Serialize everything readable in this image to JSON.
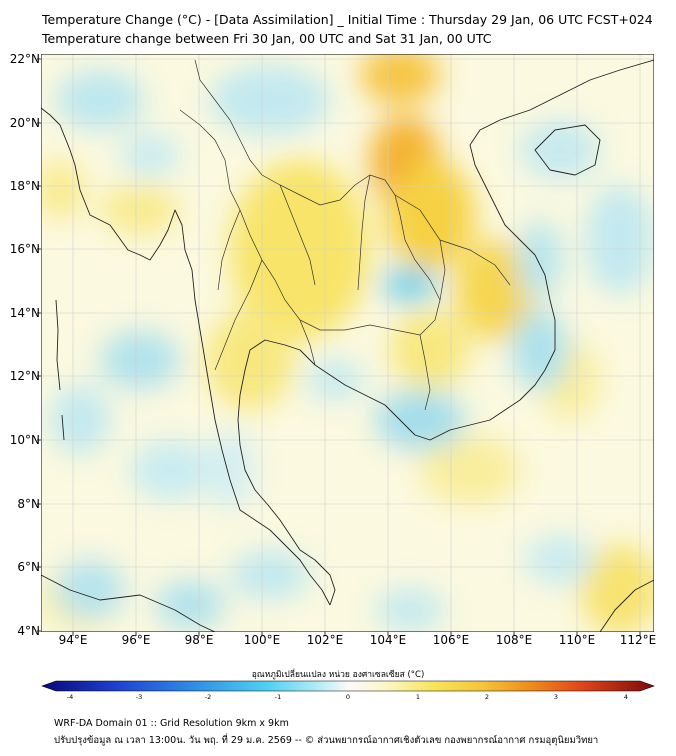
{
  "title": {
    "line1": "Temperature Change (°C) - [Data Assimilation] _ Initial Time : Thursday 29 Jan, 06 UTC FCST+024",
    "line2": "Temperature change between Fri 30 Jan, 00 UTC and Sat 31 Jan, 00 UTC"
  },
  "axes": {
    "lat_labels": [
      "22°N",
      "20°N",
      "18°N",
      "16°N",
      "14°N",
      "12°N",
      "10°N",
      "8°N",
      "6°N",
      "4°N"
    ],
    "lon_labels": [
      "94°E",
      "96°E",
      "98°E",
      "100°E",
      "102°E",
      "104°E",
      "106°E",
      "108°E",
      "110°E",
      "112°E"
    ]
  },
  "colorbar": {
    "label": "อุณหภูมิเปลี่ยนแปลง หน่วย องศาเซลเซียส (°C)",
    "ticks": [
      "-4",
      "-3",
      "-2",
      "-1",
      "0",
      "1",
      "2",
      "3",
      "4"
    ],
    "range": [
      -4,
      4
    ]
  },
  "footer": {
    "line1": "WRF-DA Domain 01 :: Grid Resolution 9km x 9km",
    "line2": "ปรับปรุงข้อมูล ณ เวลา 13:00น. วัน พฤ. ที่ 29 ม.ค. 2569 -- © ส่วนพยากรณ์อากาศเชิงตัวเลข กองพยากรณ์อากาศ กรมอุตุนิยมวิทยา"
  },
  "colors": {
    "neutral": "#fbf9dc",
    "warm": "#f9e65a",
    "hot": "#f4a21e",
    "cool": "#aee4ef",
    "cold": "#5cc9ea",
    "coast": "#222222"
  }
}
